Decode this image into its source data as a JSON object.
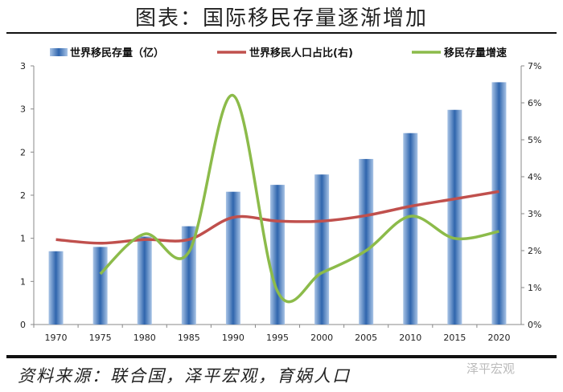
{
  "title": "图表：国际移民存量逐渐增加",
  "source": "资料来源：联合国，泽平宏观，育娲人口",
  "watermark": "泽平宏观",
  "chart_data": {
    "type": "bar+line",
    "categories": [
      "1970",
      "1975",
      "1980",
      "1985",
      "1990",
      "1995",
      "2000",
      "2005",
      "2010",
      "2015",
      "2020"
    ],
    "left_axis": {
      "range": [
        0,
        3
      ],
      "tick_labels": [
        "0",
        "1",
        "1",
        "2",
        "2",
        "3",
        "3"
      ]
    },
    "right_axis": {
      "range": [
        0,
        7
      ],
      "tick_labels": [
        "0%",
        "1%",
        "2%",
        "3%",
        "4%",
        "5%",
        "6%",
        "7%"
      ]
    },
    "series": [
      {
        "name": "世界移民存量（亿）",
        "type": "bar",
        "axis": "left",
        "color": "#3d6fb0",
        "values": [
          0.85,
          0.9,
          1.02,
          1.14,
          1.54,
          1.62,
          1.74,
          1.92,
          2.22,
          2.49,
          2.81
        ]
      },
      {
        "name": "世界移民人口占比(右)",
        "type": "line",
        "axis": "right",
        "color": "#c0504d",
        "values": [
          2.3,
          2.2,
          2.3,
          2.3,
          2.9,
          2.8,
          2.8,
          2.95,
          3.2,
          3.4,
          3.6
        ]
      },
      {
        "name": "移民存量增速",
        "type": "line",
        "axis": "right",
        "color": "#8cbb4a",
        "values": [
          null,
          1.37,
          2.45,
          1.96,
          6.2,
          0.9,
          1.4,
          2.0,
          2.93,
          2.33,
          2.52
        ]
      }
    ],
    "legend": "top"
  }
}
